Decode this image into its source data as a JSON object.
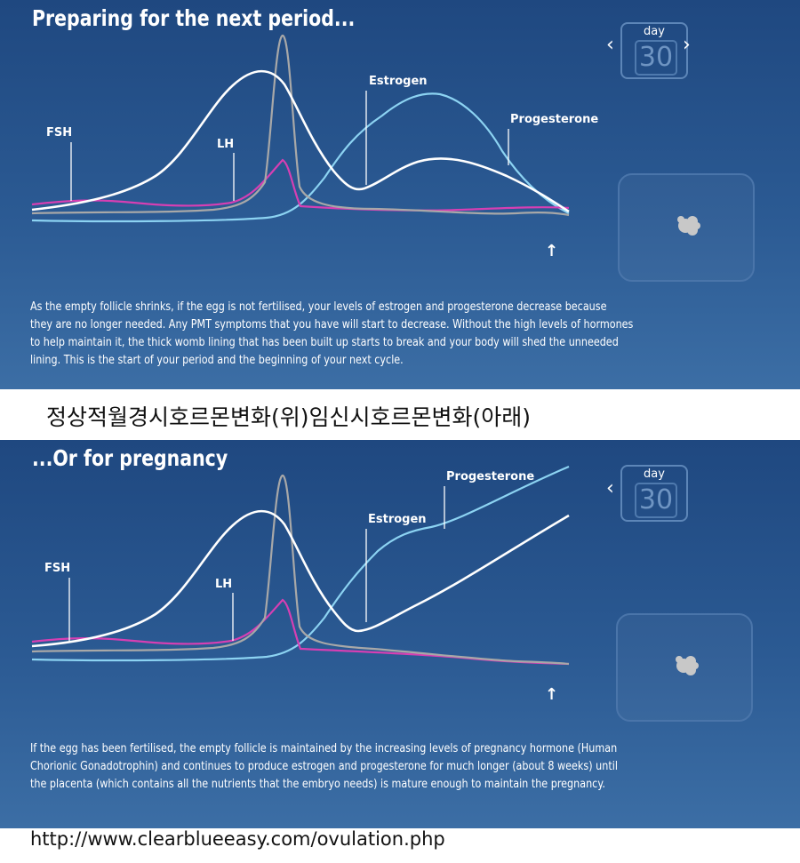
{
  "caption": "정상적월경시호르몬변화(위)임신시호르몬변화(아래)",
  "source_url": "http://www.clearblueeasy.com/ovulation.php",
  "colors": {
    "estrogen": "#ffffff",
    "lh": "#a8a8a8",
    "fsh": "#d63fb3",
    "progesterone": "#8cd3f2"
  },
  "panels": [
    {
      "title": "Preparing for the next period...",
      "day_label": "day",
      "day_value": "30",
      "prev_arrow": "‹",
      "next_arrow": "›",
      "up_arrow": "↑",
      "labels": {
        "fsh": "FSH",
        "lh": "LH",
        "estrogen": "Estrogen",
        "progesterone": "Progesterone"
      },
      "description_lines": [
        "As the empty follicle shrinks, if the egg is not fertilised, your levels of estrogen and progesterone decrease because",
        "they are no longer needed. Any PMT symptoms that you have will start to decrease. Without the high levels of hormones",
        "to help maintain it, the thick womb lining that has been built up starts to break and your body will shed the unneeded",
        "lining. This is the start of your period and the beginning of your next cycle."
      ]
    },
    {
      "title": "...Or for pregnancy",
      "day_label": "day",
      "day_value": "30",
      "prev_arrow": "‹",
      "up_arrow": "↑",
      "labels": {
        "fsh": "FSH",
        "lh": "LH",
        "estrogen": "Estrogen",
        "progesterone": "Progesterone"
      },
      "description_lines": [
        "If the egg has been fertilised, the empty follicle is maintained by the increasing levels of pregnancy hormone (Human",
        "Chorionic Gonadotrophin) and continues to produce estrogen and progesterone for much longer (about 8 weeks) until",
        "the placenta (which contains all the nutrients that the embryo needs) is mature enough to maintain the pregnancy."
      ]
    }
  ]
}
